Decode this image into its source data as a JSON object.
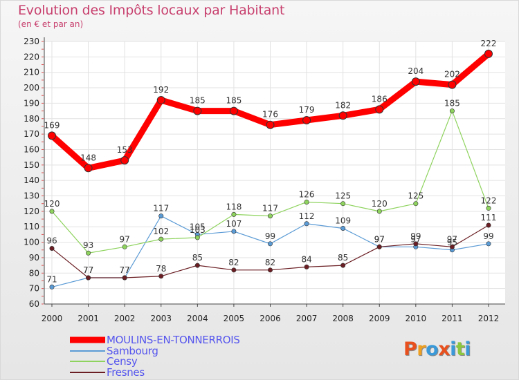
{
  "header": {
    "title": "Evolution des Impôts locaux par Habitant",
    "subtitle": "(en € et par an)"
  },
  "chart_data": {
    "type": "line",
    "x": [
      "2000",
      "2001",
      "2002",
      "2003",
      "2004",
      "2005",
      "2006",
      "2007",
      "2008",
      "2009",
      "2010",
      "2011",
      "2012"
    ],
    "ylim": [
      60,
      230
    ],
    "yticks": [
      60,
      70,
      80,
      90,
      100,
      110,
      120,
      130,
      140,
      150,
      160,
      170,
      180,
      190,
      200,
      210,
      220,
      230
    ],
    "grid": true,
    "legend_position": "bottom-left",
    "series": [
      {
        "name": "MOULINS-EN-TONNERROIS",
        "color": "#ff0000",
        "values": [
          169,
          148,
          153,
          192,
          185,
          185,
          176,
          179,
          182,
          186,
          204,
          202,
          222
        ],
        "labels": [
          "169",
          "148",
          "153",
          "192",
          "185",
          "185",
          "176",
          "179",
          "182",
          "186",
          "204",
          "202",
          "222"
        ]
      },
      {
        "name": "Sambourg",
        "color": "#5b9bd5",
        "values": [
          71,
          77,
          77,
          117,
          105,
          107,
          99,
          112,
          109,
          97,
          97,
          95,
          99
        ],
        "labels": [
          "71",
          "77",
          "77",
          "117",
          "105",
          "107",
          "99",
          "112",
          "109",
          "97",
          "97",
          "95",
          "99"
        ]
      },
      {
        "name": "Censy",
        "color": "#8ed35e",
        "values": [
          120,
          93,
          97,
          102,
          103,
          118,
          117,
          126,
          125,
          120,
          125,
          185,
          122
        ],
        "labels": [
          "120",
          "93",
          "97",
          "102",
          "103",
          "118",
          "117",
          "126",
          "125",
          "120",
          "125",
          "185",
          "122"
        ]
      },
      {
        "name": "Fresnes",
        "color": "#6b1f24",
        "values": [
          96,
          77,
          77,
          78,
          85,
          82,
          82,
          84,
          85,
          97,
          99,
          97,
          111
        ],
        "labels": [
          "96",
          "77",
          "77",
          "78",
          "85",
          "82",
          "82",
          "84",
          "85",
          "97",
          "99",
          "97",
          "111"
        ]
      }
    ]
  },
  "legend": {
    "items": [
      {
        "label": "MOULINS-EN-TONNERROIS",
        "text_color": "#5555ee"
      },
      {
        "label": "Sambourg",
        "text_color": "#5555ee"
      },
      {
        "label": "Censy",
        "text_color": "#5555ee"
      },
      {
        "label": "Fresnes",
        "text_color": "#5555ee"
      }
    ]
  },
  "logo": {
    "letters": [
      "P",
      "r",
      "o",
      "x",
      "i",
      "t",
      "i"
    ],
    "colors": [
      "#e8501e",
      "#f0a020",
      "#3a9ad9",
      "#e8501e",
      "#3a9ad9",
      "#8cc63f",
      "#3a9ad9"
    ]
  }
}
